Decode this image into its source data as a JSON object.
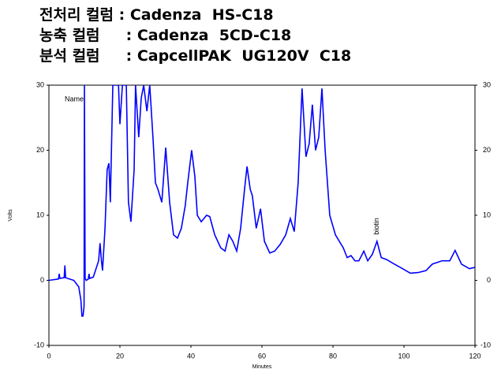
{
  "header": {
    "lines": [
      "전처리 컬럼 : Cadenza  HS-C18",
      "농축 컬럼     : Cadenza  5CD-C18",
      "분석 컬럼     : CapcellPAK  UG120V  C18"
    ]
  },
  "chart_data": {
    "type": "line",
    "x_label": "Minutes",
    "y_label": "Volts",
    "legend_label": "Name",
    "xlim": [
      0,
      120
    ],
    "ylim": [
      -10,
      30
    ],
    "y2lim": [
      -10,
      30
    ],
    "xticks": [
      0,
      20,
      40,
      60,
      80,
      100,
      120
    ],
    "yticks": [
      -10,
      0,
      10,
      20,
      30
    ],
    "y2ticks": [
      -10,
      0,
      10,
      20,
      30
    ],
    "series": [
      {
        "name": "Name",
        "color": "#0000ff",
        "x": [
          0,
          2.7,
          2.9,
          3.1,
          4.3,
          4.5,
          4.7,
          7,
          8.4,
          9,
          9.3,
          9.6,
          9.9,
          10,
          10.2,
          10.5,
          11.1,
          11.3,
          11.5,
          12.5,
          13.4,
          14,
          14.4,
          14.8,
          15.1,
          15.8,
          16.4,
          16.9,
          17.3,
          18,
          18.7,
          19.6,
          20,
          20.7,
          21.8,
          22.4,
          23.1,
          24,
          24.4,
          25.3,
          26,
          26.7,
          27.6,
          28.4,
          29.3,
          30,
          30.7,
          31.8,
          32.9,
          34,
          35.1,
          36.2,
          37.3,
          38.4,
          39.1,
          40.2,
          41.1,
          41.8,
          42.9,
          44.4,
          45.3,
          46.7,
          48.4,
          49.6,
          50.7,
          51.8,
          52.9,
          54,
          55.1,
          55.8,
          56.7,
          57.3,
          58.4,
          59.6,
          60.7,
          62.2,
          63.6,
          65.1,
          66.7,
          68,
          69.1,
          70.2,
          71.3,
          72.4,
          73.3,
          74.2,
          75.1,
          76,
          76.9,
          77.8,
          79.1,
          80.7,
          82.9,
          84,
          85.1,
          86.2,
          87.3,
          88.7,
          89.8,
          91.1,
          92.4,
          93.6,
          95.1,
          97.3,
          99.6,
          101.8,
          104,
          106.2,
          108,
          110.7,
          112.9,
          114.4,
          116.2,
          118.4,
          120
        ],
        "values": [
          0,
          0.2,
          1,
          0.3,
          0.4,
          2.3,
          0.4,
          0,
          -1,
          -3,
          -5.5,
          -5.5,
          -4,
          30,
          0.3,
          0,
          0.2,
          1,
          0.3,
          0.5,
          2,
          3,
          5.7,
          3,
          1.5,
          8,
          17,
          18,
          12,
          30,
          30,
          30,
          24,
          30,
          30,
          12,
          9,
          17,
          30,
          22,
          28,
          30,
          26,
          30,
          22,
          15,
          14,
          12,
          20.4,
          12,
          7,
          6.5,
          8,
          11.5,
          15,
          20,
          16,
          10,
          9,
          10,
          9.8,
          7,
          5,
          4.5,
          7,
          6,
          4.5,
          8,
          14,
          17.5,
          14,
          13,
          8,
          11,
          6,
          4.2,
          4.5,
          5.5,
          7,
          9.5,
          7.5,
          15,
          29.5,
          19,
          21,
          27,
          20,
          22,
          29.5,
          20,
          10,
          7,
          5,
          3.5,
          3.8,
          3,
          3,
          4.5,
          3,
          4,
          6,
          3.5,
          3.2,
          2.5,
          1.8,
          1.1,
          1.2,
          1.5,
          2.5,
          3,
          3,
          4.6,
          2.5,
          1.8,
          2
        ]
      }
    ],
    "annotations": [
      {
        "text": "biotin",
        "x": 92.4,
        "y": 7
      }
    ]
  }
}
